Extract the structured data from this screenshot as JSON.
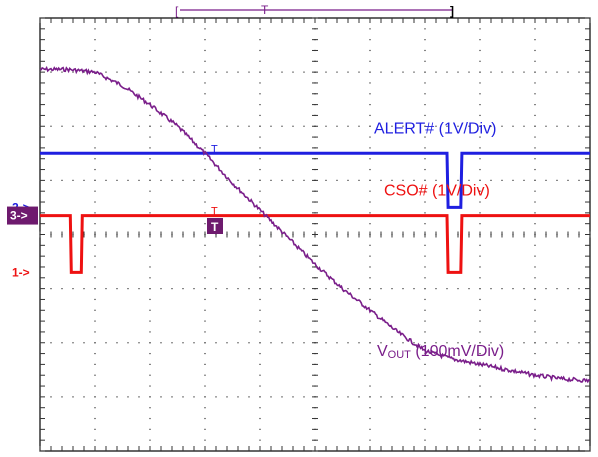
{
  "chart_data": {
    "type": "line",
    "title": "",
    "xlabel": "",
    "ylabel": "",
    "grid": true,
    "divisions": {
      "x": 10,
      "y": 8
    },
    "xlim": [
      0,
      10
    ],
    "ylim": [
      0,
      8
    ],
    "trigger_marker": "T",
    "series": [
      {
        "name": "ALERT# (1V/Div)",
        "channel_marker": "2->",
        "color": "#1f1fe0",
        "x": [
          0,
          7.4,
          7.42,
          7.65,
          7.67,
          10
        ],
        "y": [
          5.5,
          5.5,
          4.5,
          4.5,
          5.5,
          5.5
        ]
      },
      {
        "name": "CSO# (1V/Div)",
        "channel_marker": "3->",
        "color": "#ee1111",
        "x": [
          0,
          0.55,
          0.57,
          0.75,
          0.77,
          7.4,
          7.42,
          7.65,
          7.67,
          10
        ],
        "y": [
          4.35,
          4.35,
          3.3,
          3.3,
          4.35,
          4.35,
          3.3,
          3.3,
          4.35,
          4.35
        ]
      },
      {
        "name_main": "V",
        "name_sub": "OUT",
        "name_rest": " (100mV/Div)",
        "channel_marker": "1->",
        "color": "#7a1e8a",
        "x": [
          0,
          0.5,
          1.0,
          1.5,
          2.0,
          2.5,
          3.0,
          3.5,
          4.0,
          4.5,
          5.0,
          5.5,
          6.0,
          6.5,
          7.0,
          7.5,
          8.0,
          8.5,
          9.0,
          9.5,
          10
        ],
        "y": [
          7.05,
          7.05,
          7.0,
          6.75,
          6.4,
          6.0,
          5.5,
          4.95,
          4.45,
          3.95,
          3.45,
          3.0,
          2.6,
          2.2,
          1.85,
          1.7,
          1.6,
          1.5,
          1.4,
          1.33,
          1.3
        ]
      }
    ],
    "time_bar": {
      "left": "[",
      "center": "T",
      "right": "]"
    }
  },
  "colors": {
    "channel3_box": "#6e1a6e",
    "channel_marker_text": "#ffffff",
    "grid": "#333333"
  }
}
